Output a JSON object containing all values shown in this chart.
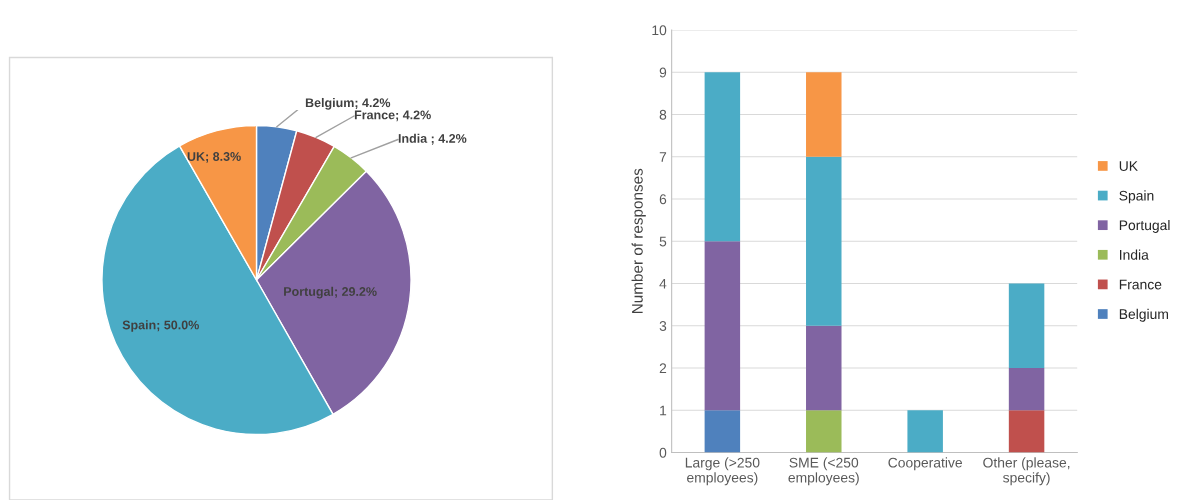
{
  "chart_data": [
    {
      "type": "pie",
      "categories": [
        "Belgium",
        "France",
        "India",
        "Portugal",
        "Spain",
        "UK"
      ],
      "values": [
        4.2,
        4.2,
        4.2,
        29.2,
        50.0,
        8.3
      ],
      "colors": [
        "#4f81bd",
        "#c0504d",
        "#9bbb59",
        "#8064a2",
        "#4bacc6",
        "#f79646"
      ],
      "value_labels": [
        "; 4.2%",
        "; 4.2%",
        " ; 4.2%",
        "; 29.2%",
        "; 50.0%",
        "; 8.3%"
      ]
    },
    {
      "type": "bar",
      "stacked": true,
      "categories": [
        "Large (>250\nemployees)",
        "SME (<250\nemployees)",
        "Cooperative",
        "Other (please,\nspecify)"
      ],
      "ylabel": "Number of responses",
      "ylim": [
        0,
        10
      ],
      "yticks": [
        0,
        1,
        2,
        3,
        4,
        5,
        6,
        7,
        8,
        9,
        10
      ],
      "grid": "y",
      "legend": "right",
      "series": [
        {
          "name": "Belgium",
          "color": "#4f81bd",
          "values": [
            1,
            0,
            0,
            0
          ]
        },
        {
          "name": "France",
          "color": "#c0504d",
          "values": [
            0,
            0,
            0,
            1
          ]
        },
        {
          "name": "India",
          "color": "#9bbb59",
          "values": [
            0,
            1,
            0,
            0
          ]
        },
        {
          "name": "Portugal",
          "color": "#8064a2",
          "values": [
            4,
            2,
            0,
            1
          ]
        },
        {
          "name": "Spain",
          "color": "#4bacc6",
          "values": [
            4,
            4,
            1,
            2
          ]
        },
        {
          "name": "UK",
          "color": "#f79646",
          "values": [
            0,
            2,
            0,
            0
          ]
        }
      ]
    }
  ]
}
